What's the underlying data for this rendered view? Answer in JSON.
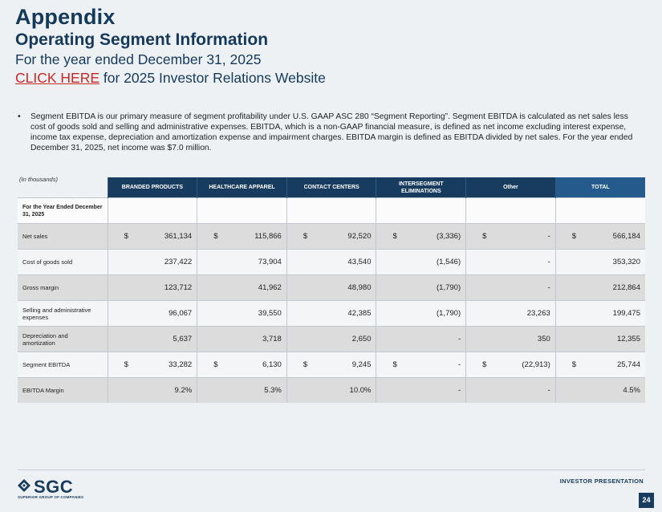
{
  "header": {
    "title": "Appendix",
    "subtitle": "Operating Segment Information",
    "period": "For the year ended December 31, 2025",
    "link_text": "CLICK HERE",
    "link_suffix": " for 2025 Investor Relations Website"
  },
  "bullet": {
    "marker": "•",
    "text": "Segment EBITDA is our primary measure of segment profitability under U.S. GAAP ASC 280 “Segment Reporting”. Segment EBITDA is calculated as net sales less cost of goods sold and selling and administrative expenses. EBITDA, which is a non-GAAP financial measure, is defined as net income excluding interest expense, income tax expense, depreciation and amortization expense and impairment charges. EBITDA margin is defined as EBITDA divided by net sales. For the year ended December 31, 2025, net income was $7.0 million."
  },
  "table": {
    "units": "(In thousands)",
    "headers": [
      "BRANDED PRODUCTS",
      "HEALTHCARE APPAREL",
      "CONTACT CENTERS",
      "INTERSEGMENT ELIMINATIONS",
      "Other",
      "TOTAL"
    ],
    "period_label": "For the Year Ended December 31, 2025",
    "rows": [
      {
        "label": "Net sales",
        "cells": [
          [
            "$",
            "361,134"
          ],
          [
            "$",
            "115,866"
          ],
          [
            "$",
            "92,520"
          ],
          [
            "$",
            "(3,336)"
          ],
          [
            "$",
            "-"
          ],
          [
            "$",
            "566,184"
          ]
        ]
      },
      {
        "label": "Cost of goods sold",
        "cells": [
          [
            "",
            "237,422"
          ],
          [
            "",
            "73,904"
          ],
          [
            "",
            "43,540"
          ],
          [
            "",
            "(1,546)"
          ],
          [
            "",
            "-"
          ],
          [
            "",
            "353,320"
          ]
        ]
      },
      {
        "label": "Gross margin",
        "cells": [
          [
            "",
            "123,712"
          ],
          [
            "",
            "41,962"
          ],
          [
            "",
            "48,980"
          ],
          [
            "",
            "(1,790)"
          ],
          [
            "",
            "-"
          ],
          [
            "",
            "212,864"
          ]
        ]
      },
      {
        "label": "Selling and administrative expenses",
        "cells": [
          [
            "",
            "96,067"
          ],
          [
            "",
            "39,550"
          ],
          [
            "",
            "42,385"
          ],
          [
            "",
            "(1,790)"
          ],
          [
            "",
            "23,263"
          ],
          [
            "",
            "199,475"
          ]
        ]
      },
      {
        "label": "Depreciation and amortization",
        "cells": [
          [
            "",
            "5,637"
          ],
          [
            "",
            "3,718"
          ],
          [
            "",
            "2,650"
          ],
          [
            "",
            "-"
          ],
          [
            "",
            "350"
          ],
          [
            "",
            "12,355"
          ]
        ]
      },
      {
        "label": "Segment EBITDA",
        "cells": [
          [
            "$",
            "33,282"
          ],
          [
            "$",
            "6,130"
          ],
          [
            "$",
            "9,245"
          ],
          [
            "$",
            "-"
          ],
          [
            "$",
            "(22,913)"
          ],
          [
            "$",
            "25,744"
          ]
        ]
      },
      {
        "label": "EBITDA Margin",
        "cells": [
          [
            "",
            "9.2%"
          ],
          [
            "",
            "5.3%"
          ],
          [
            "",
            "10.0%"
          ],
          [
            "",
            "-"
          ],
          [
            "",
            "-"
          ],
          [
            "",
            "4.5%"
          ]
        ]
      }
    ]
  },
  "footer": {
    "logo_text": "SGC",
    "logo_subtext": "SUPERIOR GROUP OF COMPANIES",
    "label": "INVESTOR PRESENTATION",
    "page_number": "24"
  },
  "colors": {
    "navy": "#173c5f",
    "total_header": "#245a8c",
    "link": "#c62828",
    "background": "#edf1f4"
  }
}
